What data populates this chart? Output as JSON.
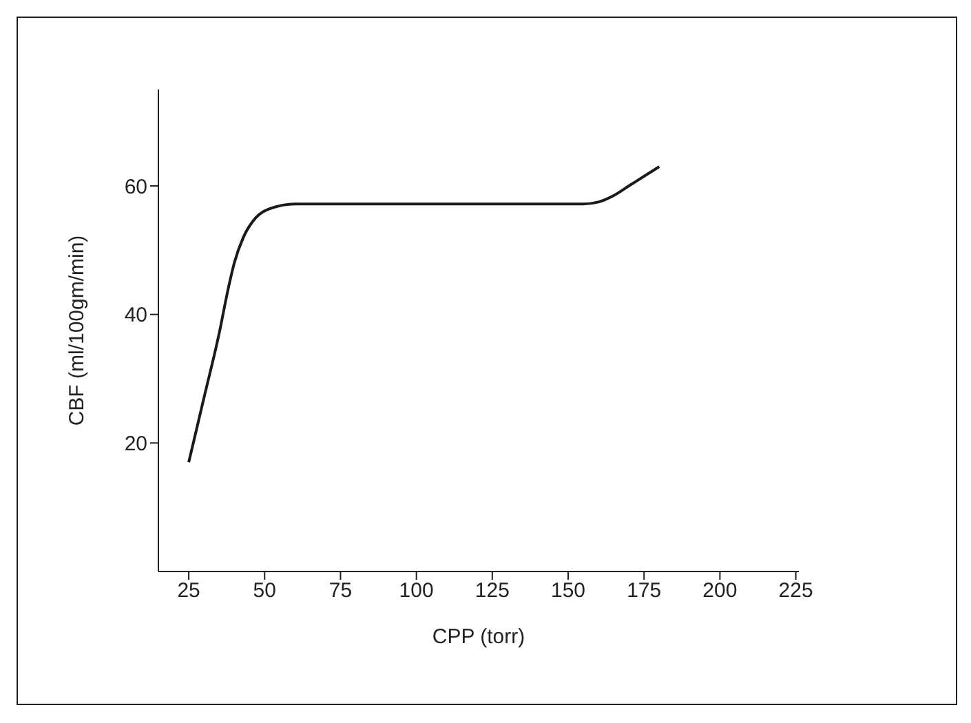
{
  "chart_data": {
    "type": "line",
    "xlabel": "CPP (torr)",
    "ylabel": "CBF (ml/100gm/min)",
    "x": [
      25,
      30,
      35,
      38,
      40,
      43,
      47,
      52,
      60,
      100,
      155,
      160,
      165,
      170,
      175,
      180
    ],
    "series": [
      {
        "color": "#1a1a1a",
        "values": [
          17,
          27,
          37,
          44,
          48,
          52,
          55,
          56.5,
          57.2,
          57.2,
          57.2,
          57.5,
          58.5,
          60,
          61.5,
          63
        ]
      }
    ],
    "xlim": [
      15,
      226
    ],
    "xticks": [
      25,
      50,
      75,
      100,
      125,
      150,
      175,
      200,
      225
    ],
    "ylim": [
      0,
      75
    ],
    "yticks": [
      20,
      40,
      60
    ],
    "grid": false,
    "marker": "none",
    "line_style": "solid"
  }
}
